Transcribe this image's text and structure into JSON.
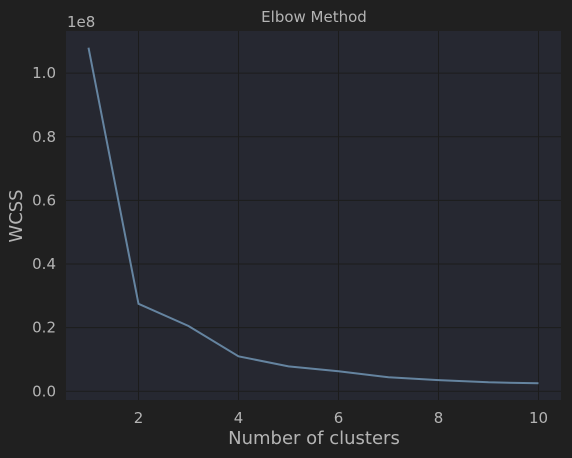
{
  "chart_data": {
    "type": "line",
    "title": "Elbow Method",
    "xlabel": "Number of clusters",
    "ylabel": "WCSS",
    "offset_text": "1e8",
    "x": [
      1,
      2,
      3,
      4,
      5,
      6,
      7,
      8,
      9,
      10
    ],
    "series": [
      {
        "name": "WCSS",
        "values": [
          1.08,
          0.275,
          0.205,
          0.11,
          0.078,
          0.063,
          0.044,
          0.035,
          0.028,
          0.025
        ]
      }
    ],
    "xticks": [
      2,
      4,
      6,
      8,
      10
    ],
    "yticks": [
      0.0,
      0.2,
      0.4,
      0.6,
      0.8,
      1.0
    ],
    "ytick_labels": [
      "0.0",
      "0.2",
      "0.4",
      "0.6",
      "0.8",
      "1.0"
    ],
    "xlim": [
      0.55,
      10.45
    ],
    "ylim": [
      -0.0275,
      1.1325
    ],
    "grid": true
  },
  "colors": {
    "background": "#202020",
    "plot_background": "#262831",
    "grid": "#1c1c1c",
    "line": "#6584a0",
    "text": "#b4b4b4"
  }
}
